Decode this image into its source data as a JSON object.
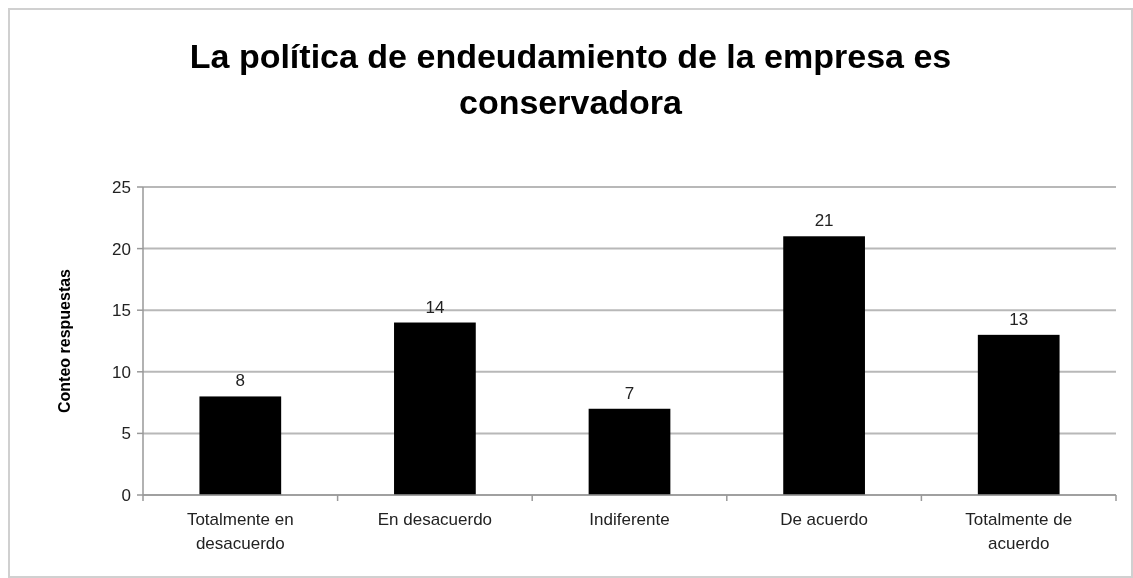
{
  "chart_data": {
    "type": "bar",
    "title": "La política de endeudamiento de la empresa es conservadora",
    "ylabel": "Conteo respuestas",
    "categories": [
      "Totalmente en desacuerdo",
      "En desacuerdo",
      "Indiferente",
      "De acuerdo",
      "Totalmente de acuerdo"
    ],
    "values": [
      8,
      14,
      7,
      21,
      13
    ],
    "color": "#000000",
    "ylim": [
      0,
      25
    ],
    "yticks": [
      0,
      5,
      10,
      15,
      20,
      25
    ],
    "grid": "y",
    "data_labels": true
  }
}
